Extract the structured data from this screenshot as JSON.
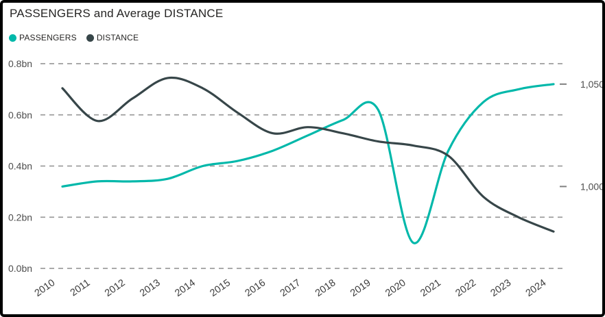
{
  "card": {
    "title": "PASSENGERS and Average DISTANCE"
  },
  "chart_data": {
    "type": "line",
    "title": "PASSENGERS and Average DISTANCE",
    "x": [
      2010,
      2011,
      2012,
      2013,
      2014,
      2015,
      2016,
      2017,
      2018,
      2019,
      2020,
      2021,
      2022,
      2023,
      2024
    ],
    "series": [
      {
        "name": "PASSENGERS",
        "axis": "left",
        "color": "#01B8AA",
        "unit": "bn",
        "values": [
          0.32,
          0.34,
          0.34,
          0.35,
          0.4,
          0.42,
          0.46,
          0.52,
          0.58,
          0.62,
          0.1,
          0.46,
          0.65,
          0.7,
          0.72
        ]
      },
      {
        "name": "DISTANCE",
        "axis": "right",
        "color": "#374649",
        "unit": "",
        "values": [
          1048,
          1032,
          1043,
          1053,
          1048,
          1036,
          1026,
          1029,
          1026,
          1022,
          1020,
          1015,
          995,
          985,
          978
        ]
      }
    ],
    "left_axis": {
      "range": [
        0,
        0.8
      ],
      "ticks": [
        {
          "v": 0.8,
          "label": "0.8bn"
        },
        {
          "v": 0.6,
          "label": "0.6bn"
        },
        {
          "v": 0.4,
          "label": "0.4bn"
        },
        {
          "v": 0.2,
          "label": "0.2bn"
        },
        {
          "v": 0.0,
          "label": "0.0bn"
        }
      ]
    },
    "right_axis": {
      "range": [
        960,
        1060
      ],
      "ticks": [
        {
          "v": 1050,
          "label": "1,050"
        },
        {
          "v": 1000,
          "label": "1,000"
        }
      ]
    },
    "grid": "horizontal-dashed",
    "legend_position": "top-left",
    "line_smoothing": true
  },
  "style": {
    "grid_color": "#9d9d9d",
    "axis_label_color": "#4d4d4d",
    "x_label_color": "#3c3c3c",
    "tick_mark_color": "#808080"
  }
}
